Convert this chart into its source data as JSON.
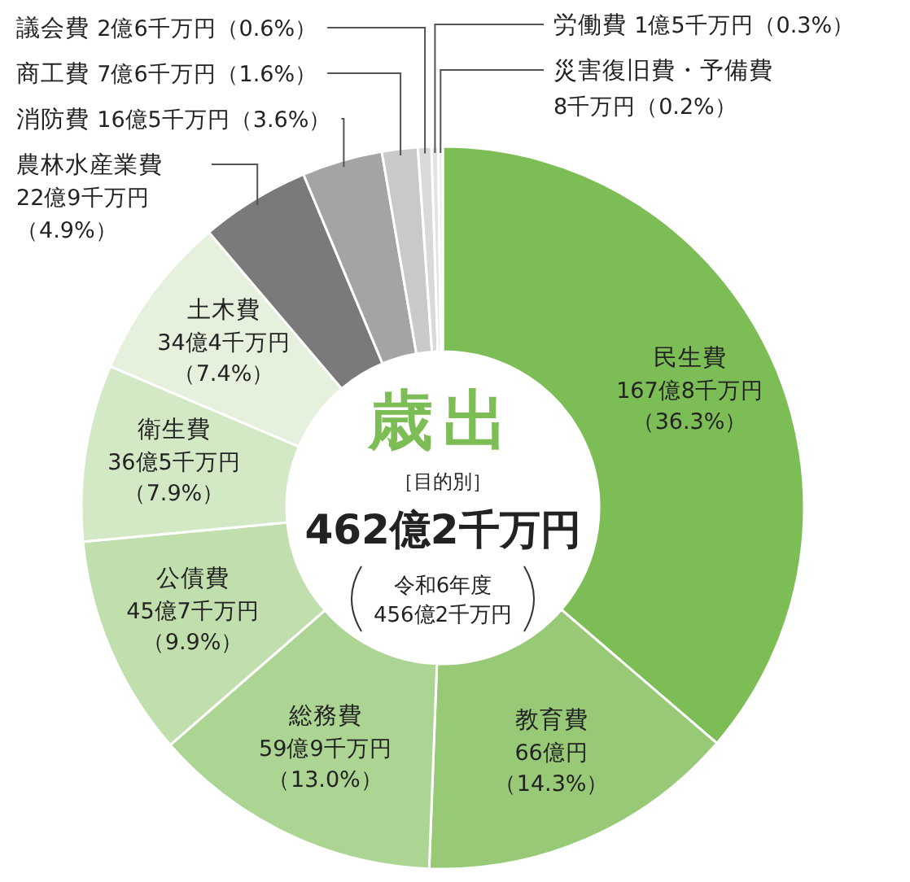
{
  "chart_data": {
    "type": "donut",
    "title": "歳出",
    "categories": [
      "民生費",
      "教育費",
      "総務費",
      "公債費",
      "衛生費",
      "土木費",
      "農林水産業費",
      "消防費",
      "商工費",
      "議会費",
      "労働費",
      "災害復旧費・予備費"
    ],
    "values": [
      36.3,
      14.3,
      13.0,
      9.9,
      7.9,
      7.4,
      4.9,
      3.6,
      1.6,
      0.6,
      0.3,
      0.2
    ],
    "value_labels": [
      "167億8千万円（36.3%）",
      "66億円（14.3%）",
      "59億9千万円（13.0%）",
      "45億7千万円（9.9%）",
      "36億5千万円（7.9%）",
      "34億4千万円（7.4%）",
      "22億9千万円（4.9%）",
      "16億5千万円（3.6%）",
      "7億6千万円（1.6%）",
      "2億6千万円（0.6%）",
      "1億5千万円（0.3%）",
      "8千万円（0.2%）"
    ],
    "colors": [
      "#7dbd55",
      "#97c977",
      "#acd493",
      "#c1dfad",
      "#d3e8c5",
      "#e5f1dc",
      "#7a7a7a",
      "#a4a4a4",
      "#c9c9c9",
      "#d9d9d9",
      "#e3e3e3",
      "#ececec"
    ],
    "annotations": [
      "［目的別］",
      "462億2千万円",
      "令和6年度 456億2千万円"
    ]
  }
}
